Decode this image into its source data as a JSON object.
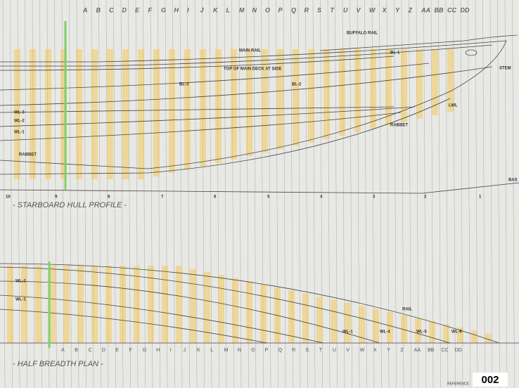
{
  "top_letters": [
    "A",
    "B",
    "C",
    "D",
    "E",
    "F",
    "G",
    "H",
    "I",
    "J",
    "K",
    "L",
    "M",
    "N",
    "O",
    "P",
    "Q",
    "R",
    "S",
    "T",
    "U",
    "V",
    "W",
    "X",
    "Y",
    "Z",
    "AA",
    "BB",
    "CC",
    "DD"
  ],
  "profile": {
    "title": "- STARBOARD HULL PROFILE -",
    "labels": [
      "BUFFALO RAIL",
      "MAIN RAIL",
      "TOP OF MAIN DECK AT SIDE",
      "BL-1",
      "BL-2",
      "BL-3",
      "STEM",
      "LWL",
      "RABBET",
      "WL-3",
      "WL-2",
      "WL-1",
      "RABBET",
      "BAS"
    ],
    "stations": [
      "10",
      "9",
      "8",
      "7",
      "6",
      "5",
      "4",
      "3",
      "2",
      "1"
    ]
  },
  "plan": {
    "title": "- HALF BREADTH PLAN -",
    "labels": [
      "WL-2",
      "WL-1",
      "RAIL",
      "WL-1",
      "WL-4",
      "WL-5",
      "WL-6"
    ],
    "letters": [
      "A",
      "B",
      "C",
      "D",
      "E",
      "F",
      "G",
      "H",
      "I",
      "J",
      "K",
      "L",
      "M",
      "N",
      "O",
      "P",
      "Q",
      "R",
      "S",
      "T",
      "U",
      "V",
      "W",
      "X",
      "Y",
      "Z",
      "AA",
      "BB",
      "CC",
      "DD"
    ]
  },
  "footer": {
    "badge": "002",
    "note": "REFERENCE"
  }
}
